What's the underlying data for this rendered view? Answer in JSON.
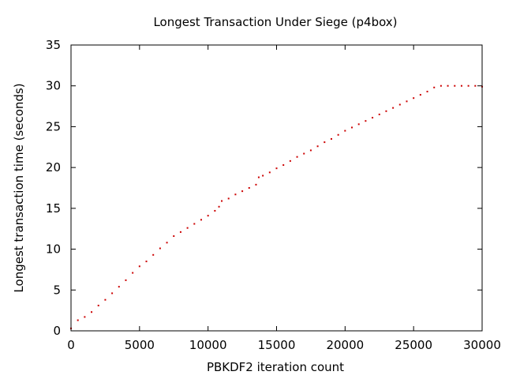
{
  "chart_data": {
    "type": "scatter",
    "title": "Longest Transaction Under Siege (p4box)",
    "xlabel": "PBKDF2 iteration count",
    "ylabel": "Longest transaction time (seconds)",
    "xlim": [
      0,
      30000
    ],
    "ylim": [
      0,
      35
    ],
    "x_ticks": [
      0,
      5000,
      10000,
      15000,
      20000,
      25000,
      30000
    ],
    "y_ticks": [
      0,
      5,
      10,
      15,
      20,
      25,
      30,
      35
    ],
    "grid": false,
    "series": [
      {
        "color": "#cc0000",
        "marker": "dot",
        "x": [
          0,
          500,
          1000,
          1500,
          2000,
          2500,
          3000,
          3500,
          4000,
          4500,
          5000,
          5500,
          6000,
          6500,
          7000,
          7500,
          8000,
          8500,
          9000,
          9500,
          10000,
          10500,
          10800,
          11000,
          11500,
          12000,
          12500,
          13000,
          13500,
          13700,
          14000,
          14500,
          15000,
          15500,
          16000,
          16500,
          17000,
          17500,
          18000,
          18500,
          19000,
          19500,
          20000,
          20500,
          21000,
          21500,
          22000,
          22500,
          23000,
          23500,
          24000,
          24500,
          25000,
          25500,
          26000,
          26500,
          27000,
          27500,
          28000,
          28500,
          29000,
          29500,
          30000
        ],
        "y": [
          0.3,
          1.3,
          1.7,
          2.3,
          3.1,
          3.8,
          4.6,
          5.4,
          6.2,
          7.1,
          7.9,
          8.5,
          9.3,
          10.1,
          10.8,
          11.6,
          12.1,
          12.6,
          13.1,
          13.6,
          14.1,
          14.7,
          15.2,
          15.9,
          16.2,
          16.7,
          17.1,
          17.5,
          17.9,
          18.8,
          19.0,
          19.4,
          19.9,
          20.3,
          20.8,
          21.3,
          21.7,
          22.1,
          22.6,
          23.1,
          23.5,
          24.0,
          24.5,
          24.9,
          25.3,
          25.7,
          26.1,
          26.5,
          26.9,
          27.3,
          27.7,
          28.1,
          28.5,
          28.9,
          29.3,
          29.8,
          30.0,
          30.0,
          30.0,
          30.0,
          30.0,
          30.0,
          29.9
        ]
      }
    ]
  }
}
